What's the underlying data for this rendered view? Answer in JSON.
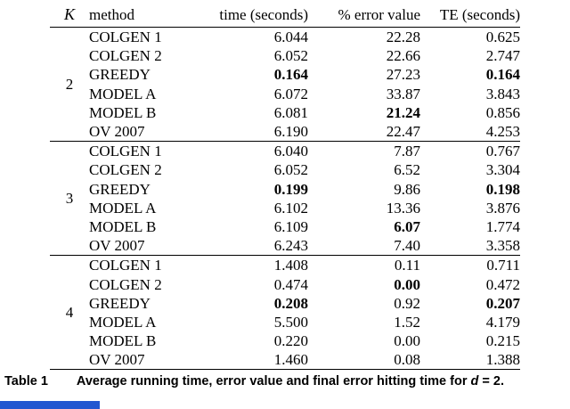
{
  "table": {
    "headers": {
      "k": "K",
      "method": "method",
      "time": "time (seconds)",
      "error": "% error value",
      "te": "TE (seconds)"
    },
    "groups": [
      {
        "k": "2",
        "rows": [
          {
            "method": "COLGEN 1",
            "time": "6.044",
            "error": "22.28",
            "te": "0.625",
            "bold": []
          },
          {
            "method": "COLGEN 2",
            "time": "6.052",
            "error": "22.66",
            "te": "2.747",
            "bold": []
          },
          {
            "method": "GREEDY",
            "time": "0.164",
            "error": "27.23",
            "te": "0.164",
            "bold": [
              "time",
              "te"
            ]
          },
          {
            "method": "MODEL A",
            "time": "6.072",
            "error": "33.87",
            "te": "3.843",
            "bold": []
          },
          {
            "method": "MODEL B",
            "time": "6.081",
            "error": "21.24",
            "te": "0.856",
            "bold": [
              "error"
            ]
          },
          {
            "method": "OV 2007",
            "time": "6.190",
            "error": "22.47",
            "te": "4.253",
            "bold": []
          }
        ]
      },
      {
        "k": "3",
        "rows": [
          {
            "method": "COLGEN 1",
            "time": "6.040",
            "error": "7.87",
            "te": "0.767",
            "bold": []
          },
          {
            "method": "COLGEN 2",
            "time": "6.052",
            "error": "6.52",
            "te": "3.304",
            "bold": []
          },
          {
            "method": "GREEDY",
            "time": "0.199",
            "error": "9.86",
            "te": "0.198",
            "bold": [
              "time",
              "te"
            ]
          },
          {
            "method": "MODEL A",
            "time": "6.102",
            "error": "13.36",
            "te": "3.876",
            "bold": []
          },
          {
            "method": "MODEL B",
            "time": "6.109",
            "error": "6.07",
            "te": "1.774",
            "bold": [
              "error"
            ]
          },
          {
            "method": "OV 2007",
            "time": "6.243",
            "error": "7.40",
            "te": "3.358",
            "bold": []
          }
        ]
      },
      {
        "k": "4",
        "rows": [
          {
            "method": "COLGEN 1",
            "time": "1.408",
            "error": "0.11",
            "te": "0.711",
            "bold": []
          },
          {
            "method": "COLGEN 2",
            "time": "0.474",
            "error": "0.00",
            "te": "0.472",
            "bold": [
              "error"
            ]
          },
          {
            "method": "GREEDY",
            "time": "0.208",
            "error": "0.92",
            "te": "0.207",
            "bold": [
              "time",
              "te"
            ]
          },
          {
            "method": "MODEL A",
            "time": "5.500",
            "error": "1.52",
            "te": "4.179",
            "bold": []
          },
          {
            "method": "MODEL B",
            "time": "0.220",
            "error": "0.00",
            "te": "0.215",
            "bold": []
          },
          {
            "method": "OV 2007",
            "time": "1.460",
            "error": "0.08",
            "te": "1.388",
            "bold": []
          }
        ]
      }
    ]
  },
  "caption": {
    "label": "Table 1",
    "text_before": "Average running time, error value and final error hitting time for ",
    "var": "d",
    "text_after": " = 2."
  },
  "accent": {
    "bottom_bar_color": "#2257d0"
  }
}
